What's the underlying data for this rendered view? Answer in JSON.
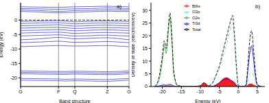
{
  "chart_data": [
    {
      "type": "line",
      "title": "a)",
      "x_label": "Band structure",
      "y_label": "Energy (eV)",
      "x": [
        0,
        0.175,
        0.35,
        0.425,
        0.5,
        0.65,
        0.8,
        0.9,
        1
      ],
      "xlim": [
        0,
        1
      ],
      "xticks": [
        {
          "value": 0,
          "label": "G"
        },
        {
          "value": 0.35,
          "label": "F"
        },
        {
          "value": 0.5,
          "label": "Q"
        },
        {
          "value": 0.8,
          "label": "Z"
        },
        {
          "value": 1,
          "label": "G"
        }
      ],
      "ylim": [
        -23,
        6
      ],
      "yticks": [
        -20,
        -15,
        -10,
        -5,
        0
      ],
      "grid": "x",
      "color": "#4040e0",
      "line_style": "solid",
      "marker": "none",
      "fermi_level": {
        "value": 0,
        "color": "#000000",
        "line_style": "dashed"
      },
      "series": [
        {
          "values": [
            3.0,
            2.8,
            2.5,
            2.6,
            2.7,
            2.9,
            3.1,
            3.0,
            3.0
          ]
        },
        {
          "values": [
            3.5,
            3.3,
            3.0,
            3.1,
            3.3,
            3.4,
            3.6,
            3.5,
            3.5
          ]
        },
        {
          "values": [
            4.0,
            3.9,
            3.7,
            3.8,
            3.9,
            4.0,
            4.2,
            4.1,
            4.0
          ]
        },
        {
          "values": [
            4.6,
            4.5,
            4.4,
            4.5,
            4.6,
            4.7,
            4.8,
            4.7,
            4.6
          ]
        },
        {
          "values": [
            -0.5,
            -0.3,
            -0.2,
            -0.4,
            -0.6,
            -0.4,
            -0.3,
            -0.4,
            -0.5
          ]
        },
        {
          "values": [
            -1.2,
            -1.0,
            -0.9,
            -1.1,
            -1.3,
            -1.1,
            -1.0,
            -1.1,
            -1.2
          ]
        },
        {
          "values": [
            -2.0,
            -1.8,
            -1.6,
            -1.9,
            -2.1,
            -1.9,
            -1.7,
            -1.9,
            -2.0
          ]
        },
        {
          "values": [
            -2.8,
            -2.6,
            -2.5,
            -2.7,
            -2.9,
            -2.7,
            -2.6,
            -2.7,
            -2.8
          ]
        },
        {
          "values": [
            -3.6,
            -3.5,
            -3.3,
            -3.5,
            -3.7,
            -3.5,
            -3.4,
            -3.5,
            -3.6
          ]
        },
        {
          "values": [
            -4.5,
            -4.3,
            -4.2,
            -4.4,
            -4.6,
            -4.4,
            -4.3,
            -4.4,
            -4.5
          ]
        },
        {
          "values": [
            -5.5,
            -5.3,
            -5.1,
            -5.3,
            -5.5,
            -5.4,
            -5.2,
            -5.4,
            -5.5
          ]
        },
        {
          "values": [
            -6.8,
            -6.5,
            -6.0,
            -6.2,
            -6.5,
            -6.3,
            -6.1,
            -6.4,
            -6.8
          ]
        },
        {
          "values": [
            -7.8,
            -7.6,
            -7.3,
            -7.5,
            -7.7,
            -7.6,
            -7.4,
            -7.6,
            -7.8
          ]
        },
        {
          "values": [
            -9.2,
            -9.0,
            -8.8,
            -8.9,
            -9.0,
            -8.9,
            -8.8,
            -9.0,
            -9.2
          ]
        },
        {
          "values": [
            -17.6,
            -17.7,
            -17.8,
            -17.8,
            -17.7,
            -17.8,
            -17.9,
            -17.8,
            -17.6
          ]
        },
        {
          "values": [
            -18.1,
            -18.2,
            -18.3,
            -18.3,
            -18.2,
            -18.3,
            -18.4,
            -18.3,
            -18.1
          ]
        },
        {
          "values": [
            -18.6,
            -18.7,
            -18.8,
            -18.8,
            -18.7,
            -18.8,
            -18.9,
            -18.8,
            -18.6
          ]
        },
        {
          "values": [
            -20.2,
            -20.3,
            -20.4,
            -20.5,
            -20.4,
            -20.5,
            -20.6,
            -20.4,
            -20.2
          ]
        },
        {
          "values": [
            -20.8,
            -20.9,
            -21.0,
            -21.1,
            -21.0,
            -21.1,
            -21.2,
            -21.0,
            -20.8
          ]
        }
      ]
    },
    {
      "type": "line",
      "title": "b)",
      "x_label": "Energy (eV)",
      "y_label": "Density of state (electrons/eV)",
      "x": [
        -22,
        -21,
        -20,
        -19.5,
        -19,
        -18.5,
        -18,
        -17.5,
        -17,
        -16,
        -14,
        -12,
        -10,
        -9.5,
        -9,
        -8.5,
        -8,
        -7,
        -6,
        -5,
        -4,
        -3,
        -2,
        -1.5,
        -1,
        -0.5,
        0,
        1,
        2,
        2.5,
        3,
        3.5,
        4,
        4.5,
        5,
        6
      ],
      "xlim": [
        -23,
        7
      ],
      "xticks": [
        -20,
        -15,
        -10,
        -5,
        0,
        5
      ],
      "ylim": [
        0,
        33
      ],
      "yticks": [
        0,
        5,
        10,
        15,
        20,
        25,
        30
      ],
      "legend": "upper left",
      "series": [
        {
          "name": "Bi6s",
          "type": "area",
          "color": "#ff0000",
          "line_style": "solid",
          "values": [
            0,
            0,
            0.1,
            0.2,
            0.2,
            0.2,
            0.3,
            0.2,
            0,
            0,
            0,
            0,
            0.3,
            1,
            1.5,
            1,
            0.3,
            0.2,
            0.5,
            1.5,
            3,
            3.5,
            2.5,
            2,
            1.5,
            0.5,
            0,
            0,
            0,
            0.5,
            1,
            1,
            0.6,
            0.3,
            0,
            0
          ]
        },
        {
          "name": "O2p",
          "type": "line",
          "color": "#66dddd",
          "line_style": "dashdot",
          "values": [
            0,
            0.3,
            1,
            1,
            0.8,
            1,
            1.2,
            1,
            0.4,
            0,
            0,
            0,
            0,
            0,
            0,
            0,
            0,
            0.8,
            3.5,
            7,
            12,
            17,
            23,
            25,
            18,
            7,
            0.3,
            0,
            0.2,
            2,
            5,
            6,
            4,
            2,
            0.3,
            0
          ]
        },
        {
          "name": "Ti3d",
          "type": "line",
          "color": "#0000ff",
          "line_style": "solid",
          "values": [
            0,
            0.2,
            0.5,
            0.6,
            0.5,
            0.6,
            0.7,
            0.6,
            0.2,
            0,
            0,
            0,
            0,
            0,
            0,
            0,
            0,
            0,
            0.5,
            1.5,
            2.5,
            3,
            2.5,
            2,
            1.5,
            0.5,
            0,
            0,
            0.3,
            6,
            13,
            16,
            11,
            4,
            0.7,
            0
          ]
        },
        {
          "name": "O2s",
          "type": "line",
          "color": "#33aa33",
          "line_style": "solid",
          "values": [
            0,
            2,
            10,
            16,
            13,
            20,
            27,
            18,
            5,
            0.3,
            0,
            0,
            0,
            0,
            0,
            0,
            0,
            0,
            0,
            0,
            0,
            0,
            0,
            0,
            0,
            0,
            0,
            0,
            0,
            0,
            0,
            0,
            0,
            0,
            0,
            0
          ]
        },
        {
          "name": "Total",
          "type": "line",
          "color": "#000000",
          "line_style": "dashed",
          "values": [
            0,
            3,
            12,
            18,
            15,
            22,
            29,
            20,
            6,
            0.5,
            0,
            0,
            0.3,
            1,
            1.5,
            1,
            0.3,
            1,
            4,
            8,
            14,
            20,
            26,
            28,
            20,
            8,
            0.5,
            0,
            0.5,
            8,
            18,
            22,
            15,
            6,
            1,
            0
          ]
        }
      ]
    }
  ]
}
